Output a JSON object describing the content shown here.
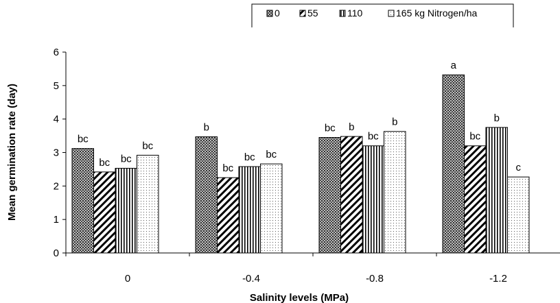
{
  "chart_data": {
    "type": "bar",
    "title": "",
    "xlabel": "Salinity levels (MPa)",
    "ylabel": "Mean germination rate (day)",
    "categories": [
      "0",
      "-0.4",
      "-0.8",
      "-1.2"
    ],
    "ylim": [
      0,
      6
    ],
    "yticks": [
      "0",
      "1",
      "2",
      "3",
      "4",
      "5",
      "6"
    ],
    "grid": false,
    "legend_position": "top",
    "series": [
      {
        "name": "0",
        "pattern": "dense-dots-dark",
        "values": [
          3.12,
          3.47,
          3.45,
          5.32
        ],
        "labels": [
          "bc",
          "b",
          "bc",
          "a"
        ]
      },
      {
        "name": "55",
        "pattern": "diagonal-hatch",
        "values": [
          2.42,
          2.25,
          3.48,
          3.2
        ],
        "labels": [
          "bc",
          "bc",
          "b",
          "bc"
        ]
      },
      {
        "name": "110",
        "pattern": "vertical-lines",
        "values": [
          2.53,
          2.58,
          3.2,
          3.75
        ],
        "labels": [
          "bc",
          "bc",
          "bc",
          "b"
        ]
      },
      {
        "name": "165 kg Nitrogen/ha",
        "pattern": "sparse-dots",
        "values": [
          2.92,
          2.66,
          3.63,
          2.27
        ],
        "labels": [
          "bc",
          "bc",
          "b",
          "c"
        ]
      }
    ]
  }
}
